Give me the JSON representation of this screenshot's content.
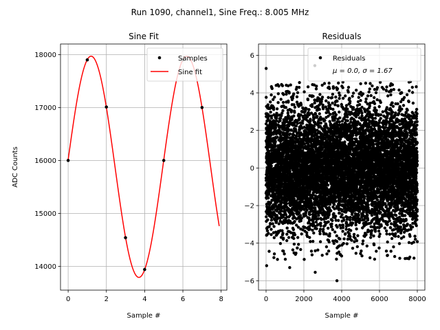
{
  "suptitle": "Run 1090, channel1, Sine Freq.: 8.005 MHz",
  "chart_data": [
    {
      "type": "scatter+line",
      "title": "Sine Fit",
      "xlabel": "Sample #",
      "ylabel": "ADC Counts",
      "xlim": [
        -0.4,
        8.3
      ],
      "ylim": [
        13550,
        18200
      ],
      "xticks": [
        0,
        2,
        4,
        6,
        8
      ],
      "yticks": [
        14000,
        15000,
        16000,
        17000,
        18000
      ],
      "grid": true,
      "legend_position": "upper-right",
      "series": [
        {
          "name": "Samples",
          "kind": "points",
          "color": "#000000",
          "x": [
            0,
            1,
            2,
            3,
            4,
            5,
            6,
            7
          ],
          "y": [
            16000,
            17900,
            17010,
            14540,
            13940,
            16000,
            17900,
            17000
          ]
        },
        {
          "name": "Sine fit",
          "kind": "line",
          "color": "#ff0000",
          "model": {
            "offset": 15880,
            "amplitude": 2090,
            "period": 5.0,
            "peak_at": 1.2
          },
          "x_range": [
            0,
            7.9
          ]
        }
      ]
    },
    {
      "type": "scatter",
      "title": "Residuals",
      "xlabel": "Sample #",
      "xlim": [
        -400,
        8400
      ],
      "ylim": [
        -6.5,
        6.6
      ],
      "xticks": [
        0,
        2000,
        4000,
        6000,
        8000
      ],
      "yticks": [
        -6,
        -4,
        -2,
        0,
        2,
        4,
        6
      ],
      "grid": true,
      "legend_position": "upper-right",
      "series": [
        {
          "name": "Residuals",
          "stats_label": "μ = 0.0, σ = 1.67",
          "color": "#000000",
          "n_points": 8000,
          "mean": 0.0,
          "sigma": 1.67
        }
      ],
      "outliers": [
        {
          "x": 5,
          "y": 5.3
        },
        {
          "x": 2580,
          "y": 5.45
        },
        {
          "x": 3750,
          "y": -6.0
        },
        {
          "x": 30,
          "y": -5.2
        },
        {
          "x": 2600,
          "y": -5.55
        },
        {
          "x": 1250,
          "y": -5.3
        }
      ]
    }
  ]
}
